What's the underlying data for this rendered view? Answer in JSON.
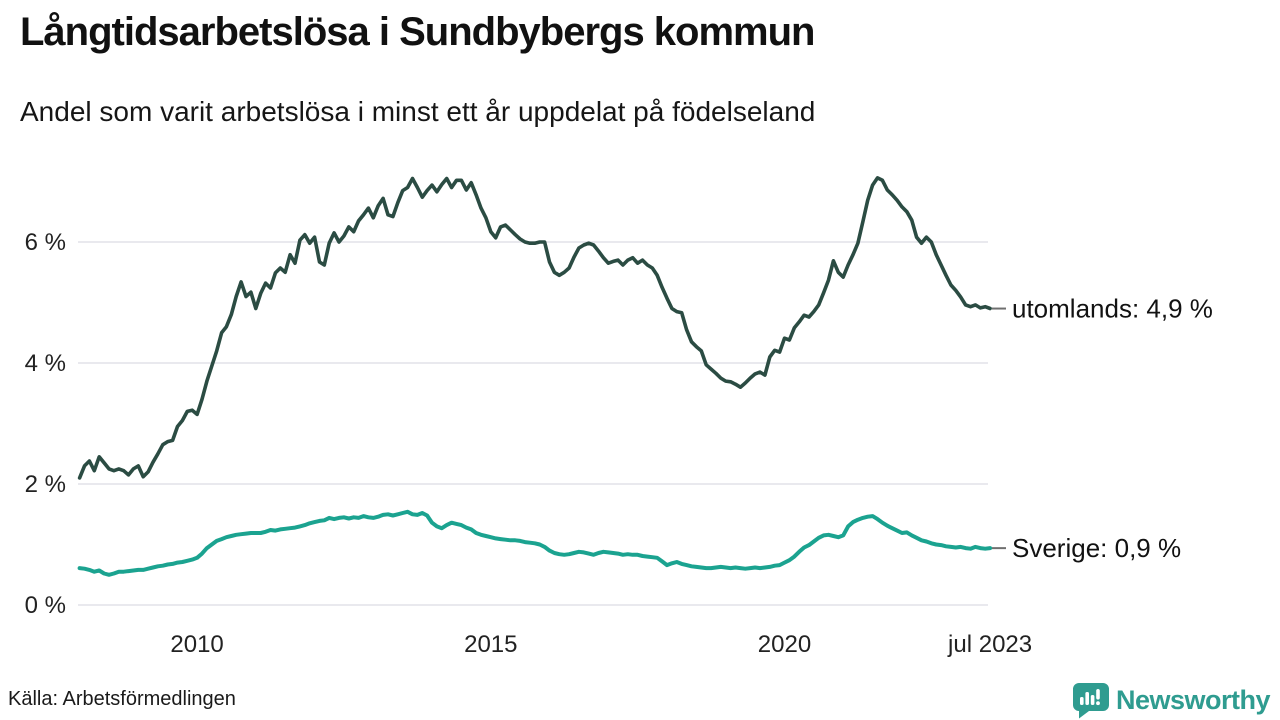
{
  "header": {
    "title": "Långtidsarbetslösa i Sundbybergs kommun",
    "subtitle": "Andel som varit arbetslösa i minst ett år uppdelat på födelseland"
  },
  "footer": {
    "source": "Källa: Arbetsförmedlingen",
    "brand": "Newsworthy",
    "brand_icon": "bar-chart-speech-bubble-icon",
    "brand_color": "#2f9c90"
  },
  "colors": {
    "utomlands_line": "#2b4c43",
    "sverige_line": "#1ba390",
    "gridline": "#e9e9ee",
    "text": "#111111"
  },
  "chart_data": {
    "type": "line",
    "title": "Långtidsarbetslösa i Sundbybergs kommun",
    "subtitle": "Andel som varit arbetslösa i minst ett år uppdelat på födelseland",
    "unit": "%",
    "grid": true,
    "legend_position": "end-of-line-labels",
    "x_start": 2008.0,
    "x_step_months": 1,
    "xlim": [
      2008.0,
      2023.5
    ],
    "ylim": [
      0,
      7.5
    ],
    "y_ticks": [
      {
        "value": 0,
        "label": "0 %"
      },
      {
        "value": 2,
        "label": "2 %"
      },
      {
        "value": 4,
        "label": "4 %"
      },
      {
        "value": 6,
        "label": "6 %"
      }
    ],
    "x_ticks": [
      {
        "year": 2010,
        "label": "2010"
      },
      {
        "year": 2015,
        "label": "2015"
      },
      {
        "year": 2020,
        "label": "2020"
      },
      {
        "year": 2023.5,
        "label": "jul 2023"
      }
    ],
    "series": [
      {
        "name": "utomlands",
        "label": "utomlands: 4,9 %",
        "last_value_label": "4,9 %",
        "color": "#2b4c43",
        "values": [
          2.1,
          2.3,
          2.38,
          2.22,
          2.45,
          2.35,
          2.25,
          2.22,
          2.25,
          2.22,
          2.15,
          2.25,
          2.3,
          2.12,
          2.2,
          2.36,
          2.5,
          2.65,
          2.7,
          2.72,
          2.95,
          3.05,
          3.2,
          3.22,
          3.15,
          3.4,
          3.7,
          3.95,
          4.2,
          4.5,
          4.6,
          4.8,
          5.1,
          5.34,
          5.1,
          5.17,
          4.9,
          5.15,
          5.32,
          5.24,
          5.49,
          5.57,
          5.5,
          5.79,
          5.65,
          6.03,
          6.12,
          5.98,
          6.08,
          5.67,
          5.62,
          5.98,
          6.15,
          6.0,
          6.1,
          6.25,
          6.17,
          6.35,
          6.45,
          6.56,
          6.4,
          6.6,
          6.72,
          6.45,
          6.42,
          6.65,
          6.85,
          6.9,
          7.05,
          6.9,
          6.74,
          6.85,
          6.94,
          6.83,
          6.95,
          7.05,
          6.9,
          7.02,
          7.02,
          6.86,
          6.98,
          6.78,
          6.56,
          6.4,
          6.17,
          6.07,
          6.25,
          6.28,
          6.2,
          6.12,
          6.05,
          6.0,
          5.98,
          5.98,
          6.0,
          6.0,
          5.67,
          5.5,
          5.45,
          5.5,
          5.57,
          5.75,
          5.9,
          5.95,
          5.98,
          5.95,
          5.85,
          5.74,
          5.65,
          5.68,
          5.7,
          5.62,
          5.7,
          5.74,
          5.65,
          5.7,
          5.62,
          5.57,
          5.45,
          5.25,
          5.07,
          4.9,
          4.85,
          4.83,
          4.55,
          4.35,
          4.27,
          4.2,
          3.97,
          3.9,
          3.83,
          3.75,
          3.7,
          3.69,
          3.65,
          3.6,
          3.67,
          3.75,
          3.82,
          3.85,
          3.8,
          4.1,
          4.21,
          4.18,
          4.41,
          4.38,
          4.58,
          4.68,
          4.79,
          4.76,
          4.85,
          4.96,
          5.16,
          5.37,
          5.69,
          5.5,
          5.42,
          5.62,
          5.79,
          5.98,
          6.33,
          6.69,
          6.94,
          7.06,
          7.02,
          6.86,
          6.78,
          6.69,
          6.58,
          6.5,
          6.36,
          6.08,
          5.98,
          6.08,
          6.0,
          5.79,
          5.62,
          5.45,
          5.29,
          5.2,
          5.09,
          4.96,
          4.93,
          4.96,
          4.91,
          4.93,
          4.9
        ]
      },
      {
        "name": "Sverige",
        "label": "Sverige: 0,9 %",
        "last_value_label": "0,9 %",
        "color": "#1ba390",
        "values": [
          0.61,
          0.6,
          0.58,
          0.55,
          0.57,
          0.52,
          0.5,
          0.52,
          0.55,
          0.55,
          0.56,
          0.57,
          0.58,
          0.58,
          0.6,
          0.62,
          0.64,
          0.65,
          0.67,
          0.68,
          0.7,
          0.71,
          0.73,
          0.75,
          0.78,
          0.85,
          0.94,
          1.0,
          1.06,
          1.09,
          1.12,
          1.14,
          1.16,
          1.17,
          1.18,
          1.19,
          1.19,
          1.19,
          1.21,
          1.24,
          1.23,
          1.25,
          1.26,
          1.27,
          1.28,
          1.3,
          1.32,
          1.35,
          1.37,
          1.39,
          1.4,
          1.44,
          1.42,
          1.44,
          1.45,
          1.43,
          1.45,
          1.44,
          1.47,
          1.45,
          1.44,
          1.46,
          1.49,
          1.5,
          1.48,
          1.5,
          1.52,
          1.54,
          1.5,
          1.49,
          1.52,
          1.48,
          1.36,
          1.3,
          1.27,
          1.32,
          1.36,
          1.34,
          1.32,
          1.28,
          1.25,
          1.19,
          1.16,
          1.14,
          1.12,
          1.1,
          1.09,
          1.08,
          1.07,
          1.07,
          1.06,
          1.04,
          1.03,
          1.02,
          1.0,
          0.96,
          0.9,
          0.86,
          0.84,
          0.83,
          0.84,
          0.86,
          0.88,
          0.87,
          0.85,
          0.83,
          0.86,
          0.88,
          0.87,
          0.86,
          0.85,
          0.83,
          0.84,
          0.83,
          0.83,
          0.81,
          0.8,
          0.79,
          0.78,
          0.72,
          0.66,
          0.69,
          0.71,
          0.68,
          0.66,
          0.64,
          0.63,
          0.62,
          0.61,
          0.61,
          0.62,
          0.63,
          0.62,
          0.61,
          0.62,
          0.61,
          0.6,
          0.61,
          0.62,
          0.61,
          0.62,
          0.63,
          0.65,
          0.66,
          0.7,
          0.74,
          0.8,
          0.88,
          0.95,
          0.99,
          1.05,
          1.11,
          1.15,
          1.16,
          1.14,
          1.12,
          1.15,
          1.3,
          1.37,
          1.41,
          1.44,
          1.46,
          1.47,
          1.42,
          1.36,
          1.31,
          1.27,
          1.23,
          1.19,
          1.2,
          1.15,
          1.11,
          1.07,
          1.05,
          1.02,
          1.0,
          0.99,
          0.97,
          0.96,
          0.95,
          0.96,
          0.94,
          0.93,
          0.96,
          0.94,
          0.93,
          0.94
        ]
      }
    ]
  }
}
